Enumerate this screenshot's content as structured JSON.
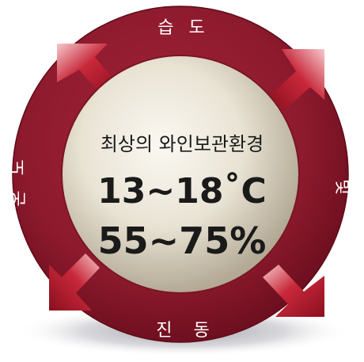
{
  "ring": {
    "top": "습 도",
    "right": "빛",
    "bottom": "진 동",
    "left": "온 도"
  },
  "center": {
    "subtitle": "최상의 와인보관환경",
    "temperature": "13~18˚C",
    "humidity": "55~75%"
  },
  "colors": {
    "ring": "#8f1a2c",
    "ring_dark": "#6e0f1f",
    "arrow": "#b8192d",
    "center_light": "#f7f4ec",
    "center_dark": "#b6ad9a"
  }
}
